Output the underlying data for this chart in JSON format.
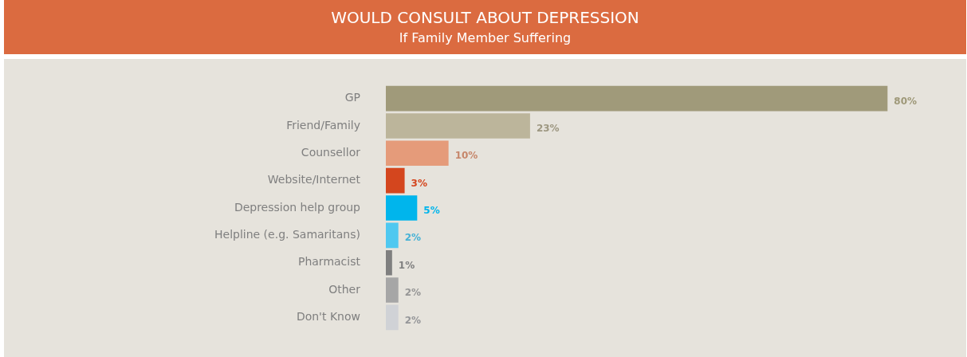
{
  "chart_data": {
    "type": "bar",
    "orientation": "horizontal",
    "title": "WOULD CONSULT ABOUT DEPRESSION",
    "subtitle": "If Family Member Suffering",
    "categories": [
      "GP",
      "Friend/Family",
      "Counsellor",
      "Website/Internet",
      "Depression help group",
      "Helpline (e.g. Samaritans)",
      "Pharmacist",
      "Other",
      "Don't Know"
    ],
    "values": [
      80,
      23,
      10,
      3,
      5,
      2,
      1,
      2,
      2
    ],
    "colors": [
      "#a09a7a",
      "#bcb59b",
      "#e59b7a",
      "#d4461e",
      "#00b5ec",
      "#4fc8f0",
      "#7f7f7f",
      "#a6a6a6",
      "#d0d2d6"
    ],
    "data_labels": true,
    "value_labels": [
      "80%",
      "23%",
      "10%",
      "3%",
      "5%",
      "2%",
      "1%",
      "2%",
      "2%"
    ],
    "grid": false,
    "legend": false
  }
}
